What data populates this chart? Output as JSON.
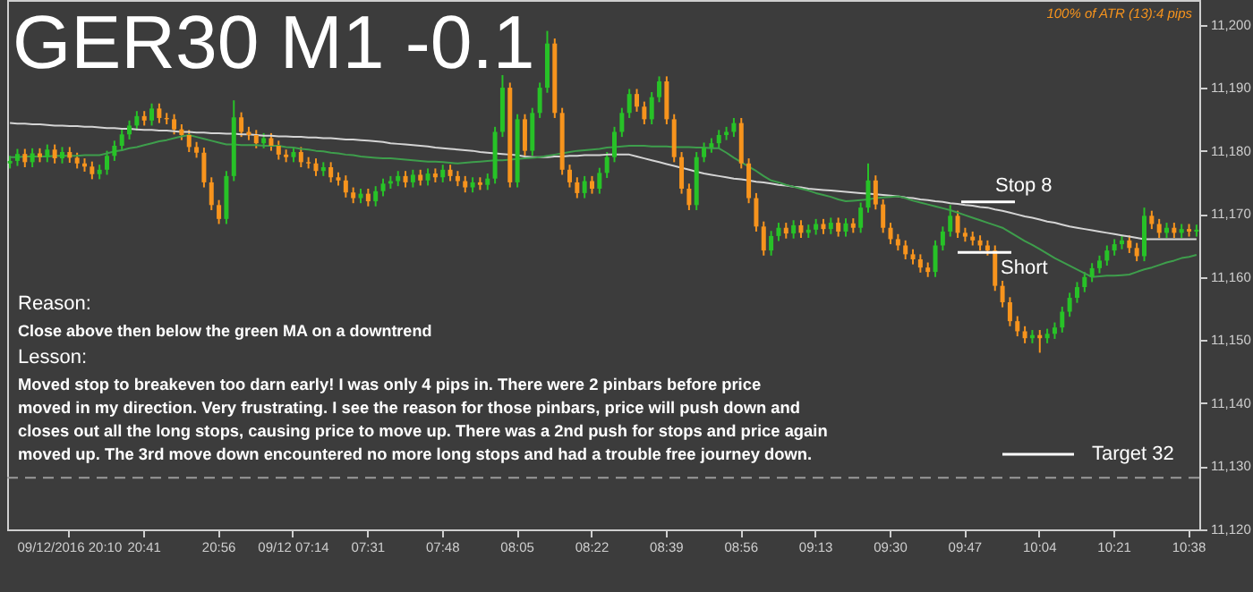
{
  "chart_data": {
    "type": "candlestick",
    "title": "GER30 M1 -0.1",
    "annotations": [
      "100% of ATR (13):4 pips",
      "Reason:",
      "Close above then below the green MA on a downtrend",
      "Lesson:",
      "Moved stop to breakeven too darn early! I was only 4 pips in. There were 2 pinbars before price",
      "moved in my direction. Very frustrating. I see the reason for those pinbars, price will push down and",
      "closes out all the long stops, causing price to move up. There was a 2nd push for stops and price again",
      "moved up. The 3rd move down encountered no more long stops and had a trouble free journey down."
    ],
    "categories": [
      null,
      null,
      null,
      null,
      null,
      null,
      null,
      null,
      "09/12/2016 20:10",
      null,
      null,
      null,
      null,
      null,
      null,
      null,
      null,
      null,
      "20:41",
      null,
      null,
      null,
      null,
      null,
      null,
      null,
      null,
      null,
      "20:56",
      null,
      null,
      null,
      null,
      null,
      null,
      null,
      null,
      null,
      "09/12 07:14",
      null,
      null,
      null,
      null,
      null,
      null,
      null,
      null,
      null,
      "07:31",
      null,
      null,
      null,
      null,
      null,
      null,
      null,
      null,
      null,
      "07:48",
      null,
      null,
      null,
      null,
      null,
      null,
      null,
      null,
      null,
      "08:05",
      null,
      null,
      null,
      null,
      null,
      null,
      null,
      null,
      null,
      "08:22",
      null,
      null,
      null,
      null,
      null,
      null,
      null,
      null,
      null,
      "08:39",
      null,
      null,
      null,
      null,
      null,
      null,
      null,
      null,
      null,
      "08:56",
      null,
      null,
      null,
      null,
      null,
      null,
      null,
      null,
      null,
      "09:13",
      null,
      null,
      null,
      null,
      null,
      null,
      null,
      null,
      null,
      "09:30",
      null,
      null,
      null,
      null,
      null,
      null,
      null,
      null,
      null,
      "09:47",
      null,
      null,
      null,
      null,
      null,
      null,
      null,
      null,
      null,
      "10:04",
      null,
      null,
      null,
      null,
      null,
      null,
      null,
      null,
      null,
      "10:21",
      null,
      null,
      null,
      null,
      null,
      null,
      null,
      null,
      null,
      "10:38",
      null
    ],
    "ohlc": [
      [
        11178.0,
        11179.2,
        11177.2,
        11178.4
      ],
      [
        11178.4,
        11180.3,
        11177.6,
        11179.5
      ],
      [
        11179.5,
        11180.3,
        11177.4,
        11178.2
      ],
      [
        11178.2,
        11180.4,
        11177.4,
        11179.6
      ],
      [
        11179.6,
        11180.4,
        11178.2,
        11179.0
      ],
      [
        11179.0,
        11181.0,
        11178.2,
        11180.2
      ],
      [
        11180.2,
        11181.0,
        11178.0,
        11178.8
      ],
      [
        11178.8,
        11180.6,
        11178.0,
        11179.8
      ],
      [
        11179.8,
        11180.6,
        11178.1,
        11178.9
      ],
      [
        11178.9,
        11179.7,
        11177.2,
        11178.0
      ],
      [
        11178.0,
        11178.8,
        11176.7,
        11177.5
      ],
      [
        11177.5,
        11178.3,
        11175.5,
        11176.3
      ],
      [
        11176.3,
        11177.8,
        11175.5,
        11177.0
      ],
      [
        11177.0,
        11180.0,
        11176.2,
        11179.2
      ],
      [
        11179.2,
        11181.6,
        11178.4,
        11180.8
      ],
      [
        11180.8,
        11183.4,
        11180.0,
        11182.6
      ],
      [
        11182.6,
        11184.8,
        11181.8,
        11184.0
      ],
      [
        11184.0,
        11186.3,
        11183.2,
        11185.5
      ],
      [
        11185.5,
        11186.3,
        11184.0,
        11184.8
      ],
      [
        11184.8,
        11187.5,
        11184.0,
        11186.7
      ],
      [
        11186.7,
        11187.5,
        11184.4,
        11185.2
      ],
      [
        11185.2,
        11186.0,
        11184.2,
        11185.0
      ],
      [
        11185.0,
        11185.8,
        11182.6,
        11183.4
      ],
      [
        11183.4,
        11184.2,
        11181.7,
        11182.5
      ],
      [
        11182.5,
        11183.3,
        11179.8,
        11180.6
      ],
      [
        11180.6,
        11181.4,
        11178.9,
        11179.7
      ],
      [
        11179.7,
        11180.5,
        11174.2,
        11175.0
      ],
      [
        11175.0,
        11175.8,
        11170.6,
        11171.4
      ],
      [
        11171.4,
        11172.2,
        11168.4,
        11169.2
      ],
      [
        11169.2,
        11176.8,
        11168.4,
        11176.0
      ],
      [
        11176.0,
        11188.0,
        11175.2,
        11185.3
      ],
      [
        11185.3,
        11186.1,
        11182.2,
        11183.0
      ],
      [
        11183.0,
        11183.8,
        11181.7,
        11182.5
      ],
      [
        11182.5,
        11183.3,
        11180.4,
        11181.2
      ],
      [
        11181.2,
        11182.8,
        11180.4,
        11182.0
      ],
      [
        11182.0,
        11182.8,
        11180.0,
        11180.8
      ],
      [
        11180.8,
        11181.6,
        11178.6,
        11179.4
      ],
      [
        11179.4,
        11180.2,
        11178.2,
        11179.0
      ],
      [
        11179.0,
        11180.6,
        11178.2,
        11179.8
      ],
      [
        11179.8,
        11180.6,
        11177.4,
        11178.2
      ],
      [
        11178.2,
        11179.0,
        11177.2,
        11178.0
      ],
      [
        11178.0,
        11178.8,
        11176.0,
        11176.8
      ],
      [
        11176.8,
        11178.2,
        11176.0,
        11177.4
      ],
      [
        11177.4,
        11178.2,
        11175.0,
        11175.8
      ],
      [
        11175.8,
        11176.6,
        11174.5,
        11175.3
      ],
      [
        11175.3,
        11176.1,
        11172.6,
        11173.4
      ],
      [
        11173.4,
        11174.2,
        11171.7,
        11172.5
      ],
      [
        11172.5,
        11174.0,
        11171.7,
        11173.2
      ],
      [
        11173.2,
        11174.0,
        11171.2,
        11172.0
      ],
      [
        11172.0,
        11174.4,
        11171.2,
        11173.6
      ],
      [
        11173.6,
        11175.6,
        11172.8,
        11174.8
      ],
      [
        11174.8,
        11176.0,
        11174.0,
        11175.2
      ],
      [
        11175.2,
        11176.8,
        11174.4,
        11176.0
      ],
      [
        11176.0,
        11176.8,
        11174.2,
        11175.0
      ],
      [
        11175.0,
        11177.0,
        11174.2,
        11176.2
      ],
      [
        11176.2,
        11177.0,
        11174.5,
        11175.3
      ],
      [
        11175.3,
        11177.2,
        11174.5,
        11176.4
      ],
      [
        11176.4,
        11177.2,
        11175.0,
        11175.8
      ],
      [
        11175.8,
        11177.8,
        11175.0,
        11177.0
      ],
      [
        11177.0,
        11177.8,
        11175.2,
        11176.0
      ],
      [
        11176.0,
        11176.8,
        11174.4,
        11175.2
      ],
      [
        11175.2,
        11176.0,
        11173.4,
        11174.2
      ],
      [
        11174.2,
        11175.8,
        11173.4,
        11175.0
      ],
      [
        11175.0,
        11175.8,
        11173.8,
        11174.6
      ],
      [
        11174.6,
        11176.4,
        11173.8,
        11175.6
      ],
      [
        11175.6,
        11183.8,
        11174.8,
        11183.0
      ],
      [
        11183.0,
        11192.0,
        11182.2,
        11190.0
      ],
      [
        11190.0,
        11190.8,
        11174.2,
        11175.0
      ],
      [
        11175.0,
        11185.8,
        11174.2,
        11185.0
      ],
      [
        11185.0,
        11185.8,
        11179.2,
        11180.0
      ],
      [
        11180.0,
        11186.8,
        11179.2,
        11186.0
      ],
      [
        11186.0,
        11190.8,
        11185.2,
        11190.0
      ],
      [
        11190.0,
        11199.0,
        11189.2,
        11197.0
      ],
      [
        11197.0,
        11197.8,
        11185.2,
        11186.0
      ],
      [
        11186.0,
        11186.8,
        11176.2,
        11177.0
      ],
      [
        11177.0,
        11177.8,
        11174.2,
        11175.0
      ],
      [
        11175.0,
        11175.8,
        11172.5,
        11173.3
      ],
      [
        11173.3,
        11176.0,
        11172.5,
        11175.2
      ],
      [
        11175.2,
        11176.0,
        11173.2,
        11174.0
      ],
      [
        11174.0,
        11177.3,
        11173.2,
        11176.5
      ],
      [
        11176.5,
        11179.8,
        11175.7,
        11179.0
      ],
      [
        11179.0,
        11183.8,
        11178.2,
        11183.0
      ],
      [
        11183.0,
        11186.8,
        11182.2,
        11186.0
      ],
      [
        11186.0,
        11189.8,
        11185.2,
        11189.0
      ],
      [
        11189.0,
        11189.8,
        11186.2,
        11187.0
      ],
      [
        11187.0,
        11187.8,
        11184.2,
        11185.0
      ],
      [
        11185.0,
        11189.3,
        11184.2,
        11188.5
      ],
      [
        11188.5,
        11191.8,
        11187.7,
        11191.0
      ],
      [
        11191.0,
        11191.8,
        11184.2,
        11185.0
      ],
      [
        11185.0,
        11185.8,
        11178.2,
        11179.0
      ],
      [
        11179.0,
        11179.8,
        11173.2,
        11174.0
      ],
      [
        11174.0,
        11174.8,
        11170.6,
        11171.4
      ],
      [
        11171.4,
        11179.8,
        11170.6,
        11179.0
      ],
      [
        11179.0,
        11181.3,
        11178.2,
        11180.5
      ],
      [
        11180.5,
        11182.0,
        11179.7,
        11181.2
      ],
      [
        11181.2,
        11183.3,
        11180.4,
        11182.5
      ],
      [
        11182.5,
        11183.8,
        11181.7,
        11183.0
      ],
      [
        11183.0,
        11185.2,
        11182.2,
        11184.4
      ],
      [
        11184.4,
        11185.2,
        11177.2,
        11178.0
      ],
      [
        11178.0,
        11178.8,
        11171.7,
        11172.5
      ],
      [
        11172.5,
        11173.3,
        11167.2,
        11168.0
      ],
      [
        11168.0,
        11168.8,
        11163.4,
        11164.2
      ],
      [
        11164.2,
        11167.3,
        11163.4,
        11166.5
      ],
      [
        11166.5,
        11168.6,
        11165.7,
        11167.8
      ],
      [
        11167.8,
        11168.6,
        11166.1,
        11166.9
      ],
      [
        11166.9,
        11169.0,
        11166.1,
        11168.2
      ],
      [
        11168.2,
        11169.0,
        11166.2,
        11167.0
      ],
      [
        11167.0,
        11168.3,
        11166.2,
        11167.5
      ],
      [
        11167.5,
        11169.2,
        11166.7,
        11168.4
      ],
      [
        11168.4,
        11169.2,
        11166.8,
        11167.6
      ],
      [
        11167.6,
        11169.4,
        11166.8,
        11168.6
      ],
      [
        11168.6,
        11169.4,
        11166.4,
        11167.2
      ],
      [
        11167.2,
        11169.3,
        11166.4,
        11168.5
      ],
      [
        11168.5,
        11169.3,
        11167.0,
        11167.8
      ],
      [
        11167.8,
        11171.8,
        11167.0,
        11171.0
      ],
      [
        11171.0,
        11178.0,
        11170.2,
        11175.3
      ],
      [
        11175.3,
        11176.1,
        11170.7,
        11171.5
      ],
      [
        11171.5,
        11172.3,
        11167.0,
        11167.8
      ],
      [
        11167.8,
        11168.6,
        11165.2,
        11166.0
      ],
      [
        11166.0,
        11166.8,
        11164.2,
        11165.0
      ],
      [
        11165.0,
        11165.8,
        11162.8,
        11163.6
      ],
      [
        11163.6,
        11164.4,
        11162.0,
        11162.8
      ],
      [
        11162.8,
        11163.6,
        11160.7,
        11161.5
      ],
      [
        11161.5,
        11162.3,
        11160.0,
        11160.8
      ],
      [
        11160.8,
        11165.8,
        11160.0,
        11165.0
      ],
      [
        11165.0,
        11168.0,
        11164.2,
        11167.2
      ],
      [
        11167.2,
        11171.4,
        11166.4,
        11169.7
      ],
      [
        11169.7,
        11170.5,
        11166.2,
        11167.0
      ],
      [
        11167.0,
        11167.8,
        11165.6,
        11166.4
      ],
      [
        11166.4,
        11167.2,
        11165.0,
        11165.8
      ],
      [
        11165.8,
        11166.6,
        11164.2,
        11165.0
      ],
      [
        11165.0,
        11165.8,
        11163.4,
        11164.2
      ],
      [
        11164.2,
        11165.0,
        11157.8,
        11158.6
      ],
      [
        11158.6,
        11159.4,
        11155.2,
        11156.0
      ],
      [
        11156.0,
        11156.8,
        11152.2,
        11153.0
      ],
      [
        11153.0,
        11153.8,
        11150.6,
        11151.4
      ],
      [
        11151.4,
        11152.2,
        11149.5,
        11150.3
      ],
      [
        11150.3,
        11151.6,
        11149.5,
        11150.8
      ],
      [
        11150.8,
        11151.6,
        11148.0,
        11150.3
      ],
      [
        11150.3,
        11151.8,
        11149.5,
        11151.0
      ],
      [
        11151.0,
        11152.8,
        11150.2,
        11152.0
      ],
      [
        11152.0,
        11155.3,
        11151.2,
        11154.5
      ],
      [
        11154.5,
        11157.5,
        11153.7,
        11156.7
      ],
      [
        11156.7,
        11159.2,
        11155.9,
        11158.4
      ],
      [
        11158.4,
        11160.8,
        11157.6,
        11160.0
      ],
      [
        11160.0,
        11162.2,
        11159.2,
        11161.4
      ],
      [
        11161.4,
        11163.4,
        11160.6,
        11162.6
      ],
      [
        11162.6,
        11165.0,
        11161.8,
        11164.2
      ],
      [
        11164.2,
        11166.0,
        11163.4,
        11165.2
      ],
      [
        11165.2,
        11166.6,
        11164.4,
        11165.8
      ],
      [
        11165.8,
        11166.6,
        11163.8,
        11164.6
      ],
      [
        11164.6,
        11165.4,
        11162.5,
        11163.3
      ],
      [
        11163.3,
        11171.0,
        11162.5,
        11169.7
      ],
      [
        11169.7,
        11170.5,
        11167.6,
        11168.4
      ],
      [
        11168.4,
        11169.2,
        11166.2,
        11167.0
      ],
      [
        11167.0,
        11168.6,
        11166.2,
        11167.8
      ],
      [
        11167.8,
        11168.6,
        11166.2,
        11167.0
      ],
      [
        11167.0,
        11168.4,
        11166.2,
        11167.6
      ],
      [
        11167.6,
        11168.4,
        11166.4,
        11167.2
      ],
      [
        11167.2,
        11168.3,
        11166.4,
        11167.5
      ]
    ],
    "series": [
      {
        "type": "line",
        "color": "#d4d4d4",
        "values": [
          11184.4,
          11184.3,
          11184.3,
          11184.2,
          11184.2,
          11184.1,
          11184.0,
          11184.0,
          11183.9,
          11183.9,
          11183.8,
          11183.8,
          11183.7,
          11183.6,
          11183.6,
          11183.5,
          11183.5,
          11183.4,
          11183.3,
          11183.3,
          11183.2,
          11183.2,
          11183.1,
          11183.0,
          11183.0,
          11182.9,
          11182.9,
          11182.8,
          11182.8,
          11182.7,
          11182.7,
          11182.6,
          11182.6,
          11182.5,
          11182.4,
          11182.4,
          11182.3,
          11182.3,
          11182.2,
          11182.2,
          11182.1,
          11182.1,
          11182.0,
          11182.0,
          11181.9,
          11181.8,
          11181.8,
          11181.7,
          11181.6,
          11181.5,
          11181.4,
          11181.2,
          11181.1,
          11181.0,
          11180.9,
          11180.8,
          11180.7,
          11180.5,
          11180.4,
          11180.3,
          11180.2,
          11180.1,
          11180.0,
          11179.8,
          11179.7,
          11179.6,
          11179.5,
          11179.4,
          11179.3,
          11179.1,
          11179.0,
          11179.0,
          11179.0,
          11179.1,
          11179.1,
          11179.2,
          11179.2,
          11179.3,
          11179.3,
          11179.3,
          11179.4,
          11179.4,
          11179.4,
          11179.4,
          11179.1,
          11178.8,
          11178.5,
          11178.2,
          11177.9,
          11177.6,
          11177.3,
          11177.0,
          11176.7,
          11176.4,
          11176.2,
          11176.0,
          11175.8,
          11175.6,
          11175.5,
          11175.3,
          11175.1,
          11175.0,
          11174.8,
          11174.6,
          11174.5,
          11174.3,
          11174.2,
          11174.0,
          11173.9,
          11173.8,
          11173.7,
          11173.6,
          11173.5,
          11173.4,
          11173.3,
          11173.2,
          11173.1,
          11173.0,
          11172.9,
          11172.8,
          11172.6,
          11172.5,
          11172.3,
          11172.2,
          11172.0,
          11171.9,
          11171.7,
          11171.6,
          11171.4,
          11171.3,
          11171.1,
          11171.0,
          11170.7,
          11170.5,
          11170.2,
          11169.9,
          11169.6,
          11169.4,
          11169.1,
          11168.8,
          11168.6,
          11168.3,
          11168.0,
          11167.8,
          11167.6,
          11167.4,
          11167.2,
          11167.0,
          11166.8,
          11166.6,
          11166.4,
          11166.2,
          11166.0,
          11166.0,
          11166.0,
          11166.0,
          11166.0,
          11166.0,
          11166.0,
          11166.0
        ]
      },
      {
        "type": "line",
        "color": "#3e9e4c",
        "values": [
          11179.0,
          11179.0,
          11179.1,
          11179.1,
          11179.1,
          11179.1,
          11179.2,
          11179.2,
          11179.2,
          11179.2,
          11179.3,
          11179.3,
          11179.3,
          11179.6,
          11179.9,
          11180.1,
          11180.4,
          11180.6,
          11180.9,
          11181.2,
          11181.5,
          11181.7,
          11182.0,
          11182.3,
          11182.5,
          11182.2,
          11181.9,
          11181.6,
          11181.3,
          11181.0,
          11181.0,
          11180.9,
          11180.9,
          11180.9,
          11180.8,
          11180.8,
          11180.8,
          11180.6,
          11180.5,
          11180.3,
          11180.2,
          11180.0,
          11179.9,
          11179.7,
          11179.6,
          11179.4,
          11179.3,
          11179.1,
          11179.0,
          11178.9,
          11178.8,
          11178.8,
          11178.7,
          11178.6,
          11178.5,
          11178.4,
          11178.3,
          11178.3,
          11178.2,
          11178.1,
          11178.0,
          11178.1,
          11178.2,
          11178.3,
          11178.4,
          11178.5,
          11178.5,
          11178.6,
          11178.7,
          11178.8,
          11178.9,
          11179.0,
          11179.2,
          11179.4,
          11179.6,
          11179.8,
          11180.0,
          11180.1,
          11180.2,
          11180.3,
          11180.5,
          11180.6,
          11180.7,
          11180.8,
          11180.8,
          11180.8,
          11180.7,
          11180.7,
          11180.7,
          11180.6,
          11180.6,
          11180.6,
          11180.5,
          11180.5,
          11180.4,
          11180.4,
          11179.7,
          11178.9,
          11178.2,
          11177.5,
          11176.8,
          11176.0,
          11175.3,
          11175.0,
          11174.6,
          11174.3,
          11174.0,
          11173.7,
          11173.3,
          11173.0,
          11172.7,
          11172.3,
          11172.0,
          11172.1,
          11172.2,
          11172.3,
          11172.5,
          11172.6,
          11172.7,
          11172.8,
          11172.5,
          11172.1,
          11171.8,
          11171.5,
          11171.2,
          11170.9,
          11170.6,
          11170.2,
          11169.8,
          11169.4,
          11169.0,
          11168.6,
          11168.2,
          11167.8,
          11167.1,
          11166.4,
          11165.7,
          11165.1,
          11164.4,
          11163.7,
          11163.0,
          11162.4,
          11161.8,
          11161.2,
          11160.6,
          11160.0,
          11160.1,
          11160.2,
          11160.2,
          11160.3,
          11160.4,
          11160.8,
          11161.2,
          11161.5,
          11161.9,
          11162.3,
          11162.6,
          11163.0,
          11163.2,
          11163.5
        ]
      }
    ],
    "ref_lines": [
      {
        "axis": "y",
        "value": 11171.9,
        "label": "Stop 8",
        "color": "#ffffff"
      },
      {
        "axis": "y",
        "value": 11163.9,
        "label": "Short",
        "color": "#ffffff"
      },
      {
        "axis": "y",
        "value": 11131.9,
        "label": "Target 32",
        "color": "#ffffff"
      },
      {
        "axis": "y",
        "value": 11128.2,
        "color": "#9a9a9a",
        "line_style": "dashed"
      }
    ],
    "ylim": [
      11120,
      11203.9
    ],
    "yticks": [
      {
        "value": 11120,
        "label": "11,120"
      },
      {
        "value": 11130,
        "label": "11,130"
      },
      {
        "value": 11140,
        "label": "11,140"
      },
      {
        "value": 11150,
        "label": "11,150"
      },
      {
        "value": 11160,
        "label": "11,160"
      },
      {
        "value": 11170,
        "label": "11,170"
      },
      {
        "value": 11180,
        "label": "11,180"
      },
      {
        "value": 11190,
        "label": "11,190"
      },
      {
        "value": 11200,
        "label": "11,200"
      }
    ],
    "grid": false
  }
}
